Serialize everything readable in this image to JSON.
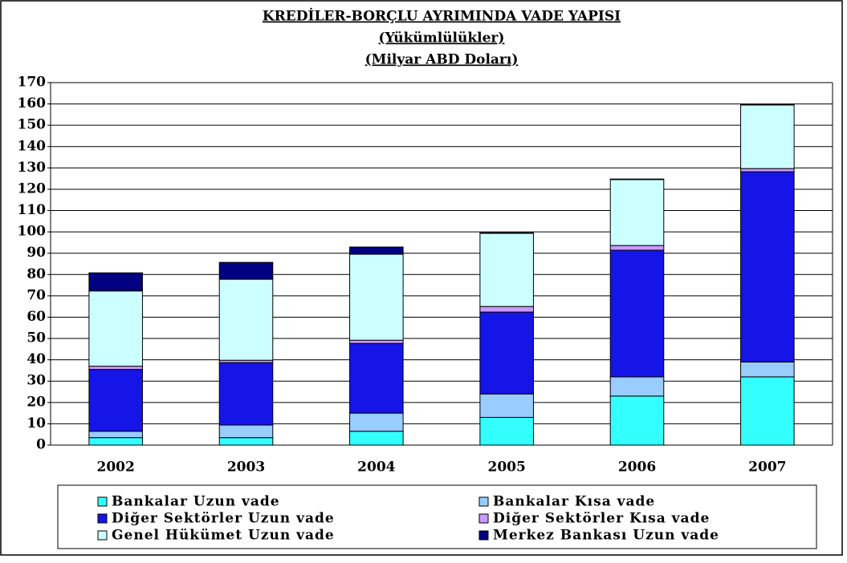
{
  "chart_data": {
    "type": "stacked_bar",
    "title": "KREDİLER-BORÇLU AYRIMINDA VADE YAPISI",
    "subtitle": [
      "(Yükümlülükler)",
      "(Milyar ABD Doları)"
    ],
    "categories": [
      "2002",
      "2003",
      "2004",
      "2005",
      "2006",
      "2007"
    ],
    "series": [
      {
        "name": "Bankalar Uzun vade",
        "color": "#33ffff",
        "values": [
          3.5,
          3.5,
          6.5,
          13,
          23,
          32
        ]
      },
      {
        "name": "Bankalar Kısa vade",
        "color": "#99ccff",
        "values": [
          3,
          5.9,
          8.5,
          11,
          9,
          7
        ]
      },
      {
        "name": "Diğer Sektörler Uzun vade",
        "color": "#1515e8",
        "values": [
          29,
          29.3,
          32.7,
          38.4,
          59.4,
          89.2
        ]
      },
      {
        "name": "Diğer Sektörler Kısa vade",
        "color": "#cc99ff",
        "values": [
          1.5,
          1.1,
          1.5,
          2.6,
          2.2,
          1.5
        ]
      },
      {
        "name": "Genel Hükümet Uzun vade",
        "color": "#ccffff",
        "values": [
          35.3,
          38,
          40.3,
          34.3,
          30.9,
          29.8
        ]
      },
      {
        "name": "Merkez Bankası Uzun vade",
        "color": "#000080",
        "values": [
          8.5,
          7.9,
          3.4,
          0.3,
          0.3,
          0.3
        ]
      }
    ],
    "ylim": [
      0,
      170
    ],
    "yticks": [
      0,
      10,
      20,
      30,
      40,
      50,
      60,
      70,
      80,
      90,
      100,
      110,
      120,
      130,
      140,
      150,
      160,
      170
    ],
    "grid": true
  }
}
